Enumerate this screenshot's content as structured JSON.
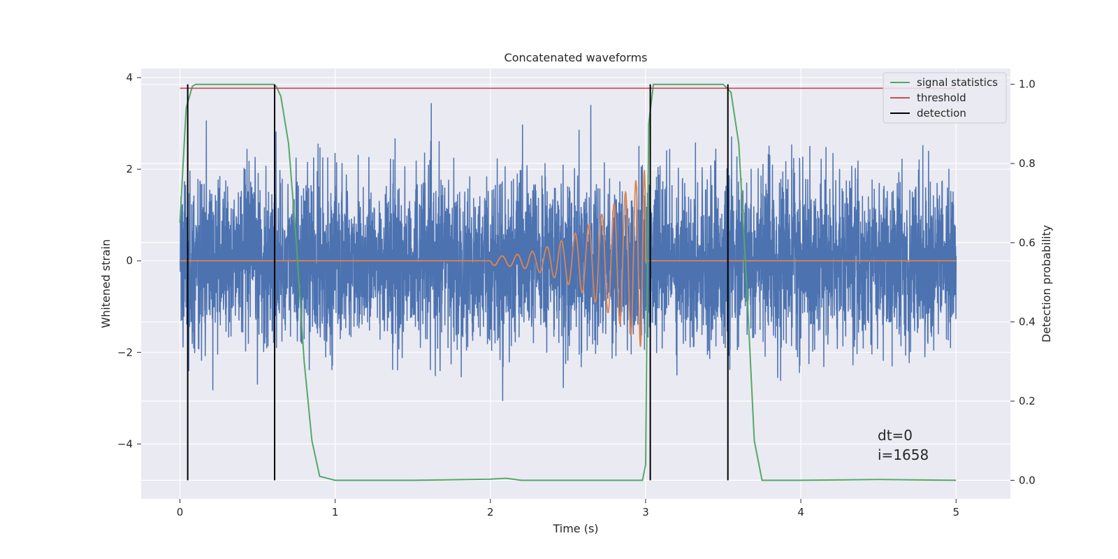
{
  "chart_data": {
    "type": "line",
    "title": "Concatenated waveforms",
    "xlabel": "Time (s)",
    "ylabel_left": "Whitened strain",
    "ylabel_right": "Detection probability",
    "xlim": [
      -0.25,
      5.35
    ],
    "ylim_left": [
      -5.2,
      4.2
    ],
    "ylim_right": [
      -0.047,
      1.04
    ],
    "x_ticks": [
      0,
      1,
      2,
      3,
      4,
      5
    ],
    "y_left_ticks": [
      -4,
      -2,
      0,
      2,
      4
    ],
    "y_right_ticks": [
      0.0,
      0.2,
      0.4,
      0.6,
      0.8,
      1.0
    ],
    "x_tick_labels": [
      "0",
      "1",
      "2",
      "3",
      "4",
      "5"
    ],
    "y_left_tick_labels": [
      "−4",
      "−2",
      "0",
      "2",
      "4"
    ],
    "y_right_tick_labels": [
      "0.0",
      "0.2",
      "0.4",
      "0.6",
      "0.8",
      "1.0"
    ],
    "grid": true,
    "legend_position": "top-right",
    "colors": {
      "background": "#EAEAF2",
      "strain": "#4C72B0",
      "injected_signal": "#DD8452",
      "signal_statistics": "#55A868",
      "threshold": "#C44E52",
      "detection": "#000000"
    },
    "series": [
      {
        "name": "",
        "axis": "left",
        "description_kind": "whitened strain noise",
        "x_range": [
          0,
          5
        ],
        "approx_std": 0.9,
        "approx_range": [
          -3.5,
          3.5
        ]
      },
      {
        "name": "",
        "axis": "left",
        "description_kind": "injected chirp",
        "x_range": [
          2,
          3
        ],
        "amplitude_start": 0.1,
        "amplitude_end": 2.0
      },
      {
        "name": "signal statistics",
        "axis": "right",
        "x": [
          0.0,
          0.04,
          0.08,
          0.1,
          0.6,
          0.62,
          0.65,
          0.7,
          0.75,
          0.8,
          0.85,
          0.9,
          1.0,
          1.5,
          2.0,
          2.1,
          2.2,
          2.5,
          2.98,
          3.0,
          3.02,
          3.05,
          3.5,
          3.55,
          3.6,
          3.65,
          3.7,
          3.75,
          4.0,
          4.5,
          5.0
        ],
        "y": [
          0.65,
          0.94,
          0.995,
          1.0,
          1.0,
          0.995,
          0.97,
          0.85,
          0.6,
          0.3,
          0.1,
          0.01,
          0.0,
          0.0,
          0.003,
          0.005,
          0.0,
          0.0,
          0.0,
          0.04,
          0.9,
          1.0,
          1.0,
          0.98,
          0.85,
          0.5,
          0.1,
          0.0,
          0.0,
          0.002,
          0.0
        ]
      },
      {
        "name": "threshold",
        "axis": "right",
        "x": [
          0,
          5
        ],
        "y": [
          0.99,
          0.99
        ]
      },
      {
        "name": "detection",
        "axis": "right",
        "kind": "vertical-lines",
        "x": [
          0.05,
          0.61,
          3.03,
          3.53
        ],
        "y_range": [
          0.0,
          1.0
        ]
      }
    ],
    "legend": [
      "signal statistics",
      "threshold",
      "detection"
    ],
    "annotations": [
      "dt=0",
      "i=1658"
    ]
  }
}
